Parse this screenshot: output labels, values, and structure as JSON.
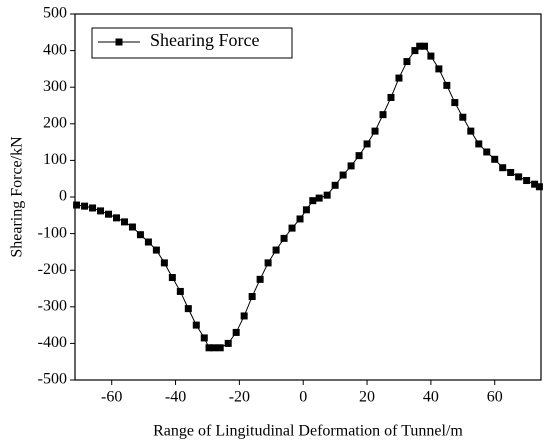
{
  "chart_data": {
    "type": "line",
    "xlabel": "Range of Lingitudinal Deformation of Tunnel/m",
    "ylabel": "Shearing Force/kN",
    "x": [
      -71,
      -68.5,
      -66,
      -63.5,
      -61,
      -58.5,
      -56,
      -53.5,
      -51,
      -48.5,
      -46,
      -43.5,
      -41,
      -38.5,
      -36,
      -33.5,
      -31,
      -29.5,
      -28,
      -26,
      -23.5,
      -21,
      -18.5,
      -16,
      -13.5,
      -11,
      -8.5,
      -6,
      -3.5,
      -1,
      1,
      3,
      5,
      7.5,
      10,
      12.5,
      15,
      17.5,
      20,
      22.5,
      25,
      27.5,
      30,
      32.5,
      35,
      36.5,
      38,
      40,
      42.5,
      45,
      47.5,
      50,
      52.5,
      55,
      57.5,
      60,
      62.5,
      65,
      67.5,
      70,
      72.5,
      74
    ],
    "series": [
      {
        "name": "Shearing Force",
        "color": "#000000",
        "values": [
          -22,
          -25,
          -30,
          -38,
          -47,
          -57,
          -68,
          -82,
          -103,
          -123,
          -145,
          -180,
          -220,
          -258,
          -305,
          -350,
          -385,
          -412,
          -412,
          -412,
          -400,
          -370,
          -325,
          -272,
          -225,
          -180,
          -145,
          -113,
          -85,
          -60,
          -35,
          -10,
          -3,
          5,
          32,
          60,
          85,
          113,
          145,
          180,
          225,
          272,
          325,
          370,
          400,
          412,
          412,
          385,
          350,
          305,
          258,
          218,
          180,
          145,
          123,
          103,
          80,
          67,
          55,
          45,
          35,
          28
        ]
      }
    ],
    "xlim": [
      -71.5,
      74.5
    ],
    "xticks": [
      -60,
      -40,
      -20,
      0,
      20,
      40,
      60
    ],
    "ylim": [
      -500,
      500
    ],
    "yticks": [
      -500,
      -400,
      -300,
      -200,
      -100,
      0,
      100,
      200,
      300,
      400,
      500
    ],
    "legend": "upper left"
  }
}
